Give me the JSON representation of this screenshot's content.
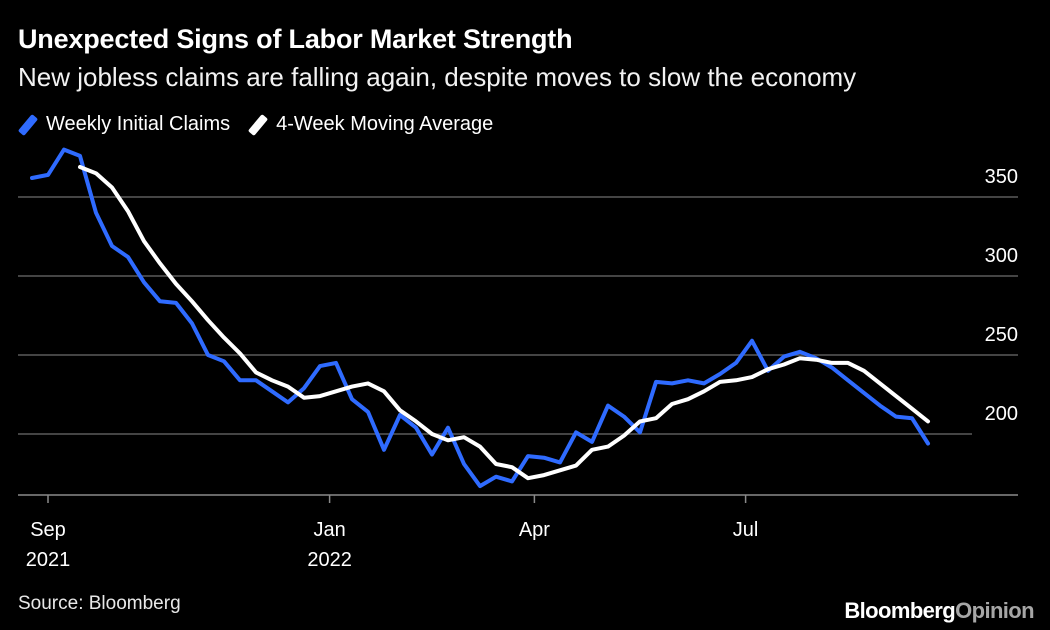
{
  "title": "Unexpected Signs of Labor Market Strength",
  "subtitle": "New jobless claims are falling again, despite moves to slow the economy",
  "legend": [
    {
      "label": "Weekly Initial Claims",
      "color": "#2f6bff"
    },
    {
      "label": "4-Week Moving Average",
      "color": "#ffffff"
    }
  ],
  "source": "Source: Bloomberg",
  "brand": {
    "part1": "Bloomberg",
    "part2": "Opinion"
  },
  "chart_data": {
    "type": "line",
    "title": "Unexpected Signs of Labor Market Strength",
    "xlabel": "",
    "ylabel": "",
    "y_axis_side": "right",
    "ylim": [
      160,
      370
    ],
    "y_ticks": [
      200,
      250,
      300,
      350
    ],
    "x_ticks": [
      {
        "week": 0,
        "label": "Sep",
        "sublabel": "2021"
      },
      {
        "week": 17.6,
        "label": "Jan",
        "sublabel": "2022"
      },
      {
        "week": 30.4,
        "label": "Apr",
        "sublabel": ""
      },
      {
        "week": 43.6,
        "label": "Jul",
        "sublabel": ""
      }
    ],
    "x_start": "2021-08-28",
    "x_step_days": 7,
    "series": [
      {
        "name": "Weekly Initial Claims",
        "color": "#2f6bff",
        "x_start_index": -1,
        "values": [
          362,
          364,
          380,
          376,
          340,
          319,
          312,
          296,
          284,
          283,
          270,
          250,
          246,
          234,
          234,
          227,
          220,
          229,
          243,
          245,
          222,
          214,
          190,
          212,
          204,
          187,
          204,
          181,
          167,
          173,
          170,
          186,
          185,
          182,
          201,
          195,
          218,
          211,
          201,
          233,
          232,
          234,
          232,
          238,
          245,
          259,
          240,
          249,
          252,
          248,
          242,
          234,
          226,
          218,
          211,
          210,
          194
        ]
      },
      {
        "name": "4-Week Moving Average",
        "color": "#ffffff",
        "x_start_index": 2,
        "values": [
          369,
          365,
          356,
          341,
          322,
          308,
          295,
          284,
          272,
          261,
          251,
          239,
          234,
          230,
          223,
          224,
          227,
          230,
          232,
          227,
          215,
          208,
          200,
          196,
          198,
          192,
          181,
          179,
          172,
          174,
          177,
          180,
          190,
          192,
          199,
          208,
          210,
          219,
          222,
          227,
          233,
          234,
          236,
          241,
          244,
          248,
          247,
          245,
          245,
          240,
          232,
          224,
          216,
          208
        ]
      }
    ],
    "grid": true,
    "legend_position": "top-left"
  }
}
